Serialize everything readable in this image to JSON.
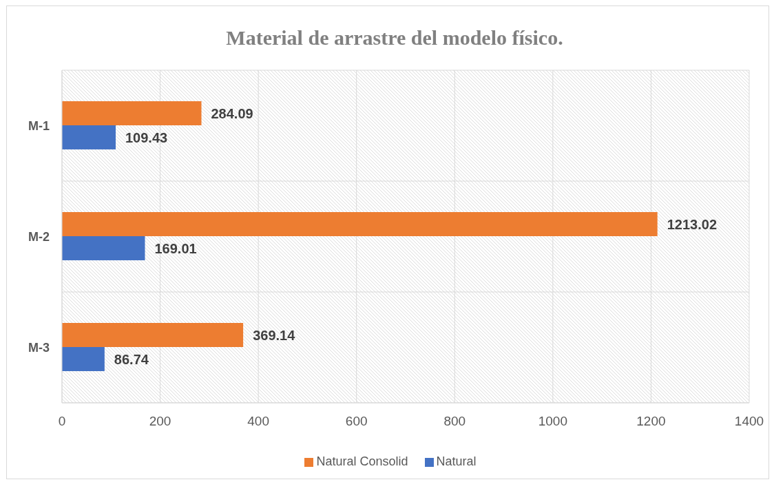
{
  "chart_data": {
    "type": "bar",
    "orientation": "horizontal",
    "title": "Material de arrastre del modelo físico.",
    "categories": [
      "M-1",
      "M-2",
      "M-3"
    ],
    "series": [
      {
        "name": "Natural Consolid",
        "color": "#ed7d31",
        "values": [
          284.09,
          1213.02,
          369.14
        ]
      },
      {
        "name": "Natural",
        "color": "#4472c4",
        "values": [
          109.43,
          169.01,
          86.74
        ]
      }
    ],
    "xlim": [
      0,
      1400
    ],
    "xticks": [
      0,
      200,
      400,
      600,
      800,
      1000,
      1200,
      1400
    ],
    "grid": true,
    "legend": "bottom",
    "data_labels": true
  }
}
